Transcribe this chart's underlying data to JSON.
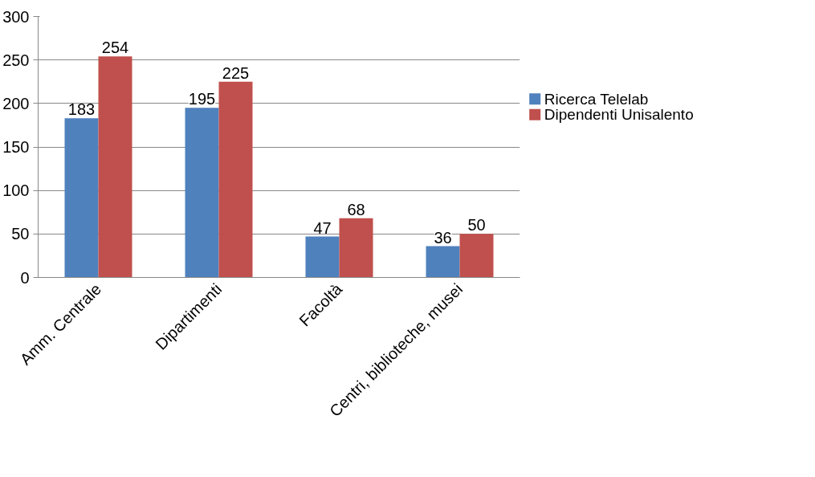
{
  "chart_data": {
    "type": "bar",
    "categories": [
      "Amm. Centrale",
      "Dipartimenti",
      "Facoltà",
      "Centri, biblioteche, musei"
    ],
    "series": [
      {
        "name": "Ricerca Telelab",
        "color": "#4f81bd",
        "values": [
          183,
          195,
          47,
          36
        ]
      },
      {
        "name": "Dipendenti Unisalento",
        "color": "#c0504d",
        "values": [
          254,
          225,
          68,
          50
        ]
      }
    ],
    "ylim": [
      0,
      300
    ],
    "yticks": [
      0,
      50,
      100,
      150,
      200,
      250,
      300
    ],
    "grid": "y",
    "legend": "right",
    "data_labels": true
  }
}
